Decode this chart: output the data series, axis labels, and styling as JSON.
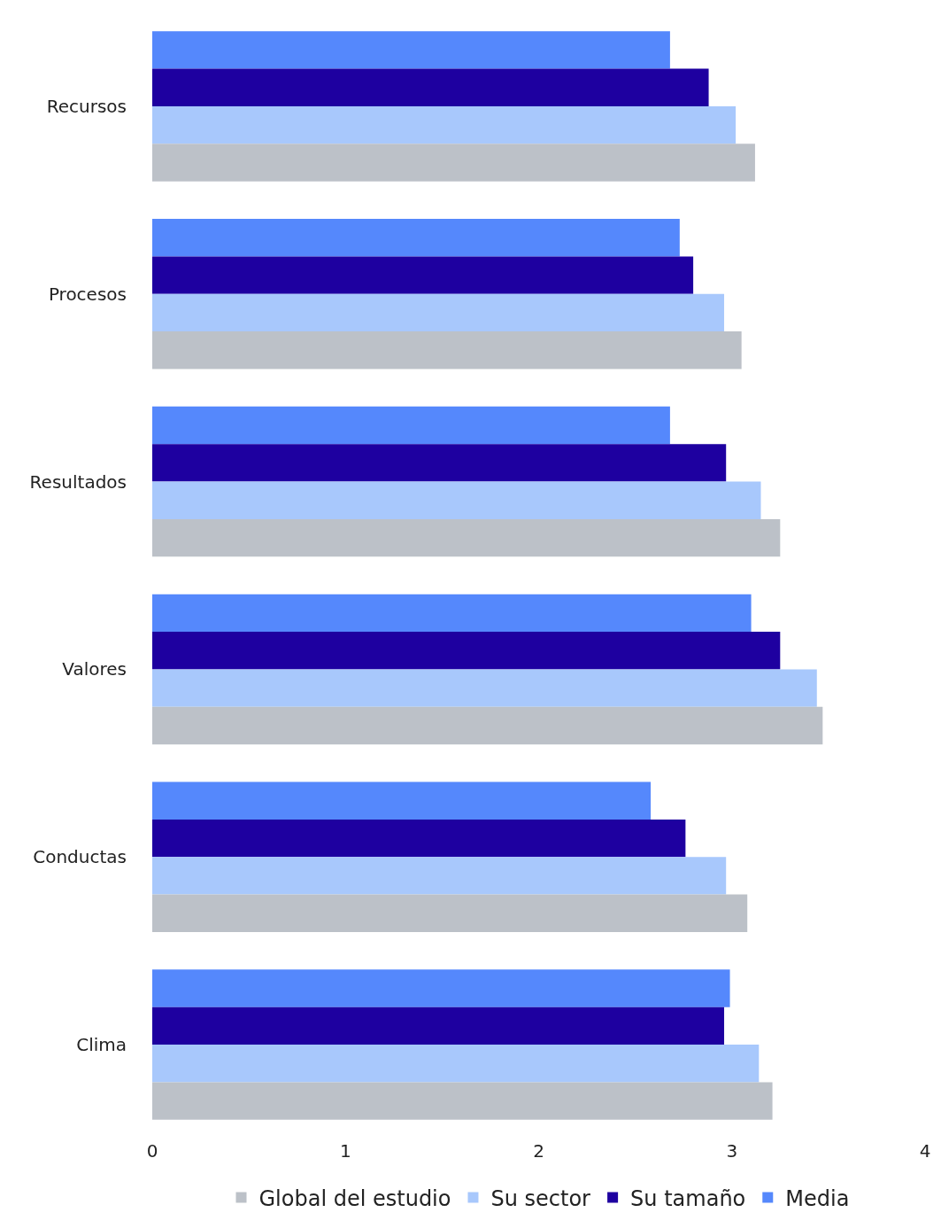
{
  "chart_data": {
    "type": "bar",
    "orientation": "horizontal",
    "categories": [
      "Recursos",
      "Procesos",
      "Resultados",
      "Valores",
      "Conductas",
      "Clima"
    ],
    "series": [
      {
        "name": "Global del estudio",
        "color": "#bcc1c8",
        "values": [
          3.12,
          3.05,
          3.25,
          3.47,
          3.08,
          3.21
        ]
      },
      {
        "name": "Su sector",
        "color": "#a8c8fc",
        "values": [
          3.02,
          2.96,
          3.15,
          3.44,
          2.97,
          3.14
        ]
      },
      {
        "name": "Su tamaño",
        "color": "#1e00a0",
        "values": [
          2.88,
          2.8,
          2.97,
          3.25,
          2.76,
          2.96
        ]
      },
      {
        "name": "Media",
        "color": "#5588fc",
        "values": [
          2.68,
          2.73,
          2.68,
          3.1,
          2.58,
          2.99
        ]
      }
    ],
    "xlim": [
      0,
      4
    ],
    "xticks": [
      0,
      1,
      2,
      3,
      4
    ],
    "legend": "bottom"
  }
}
